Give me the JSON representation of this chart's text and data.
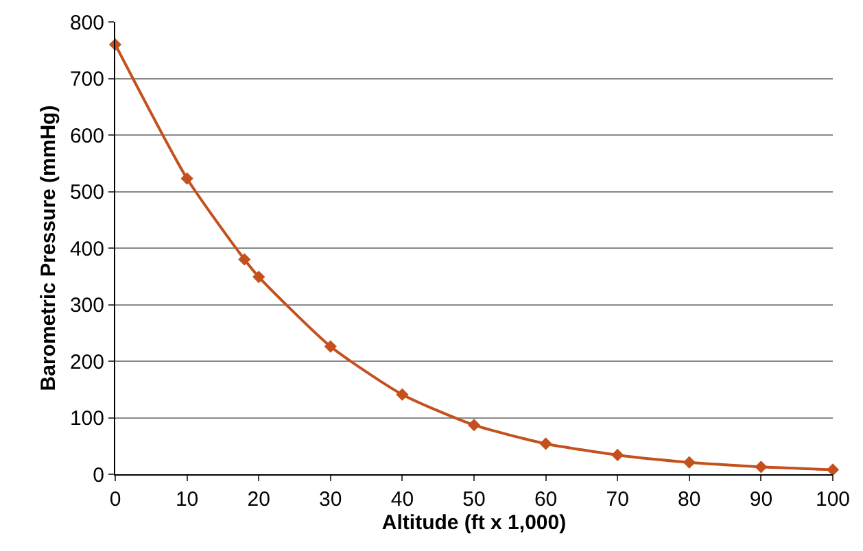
{
  "chart_data": {
    "type": "line",
    "xlabel": "Altitude (ft x 1,000)",
    "ylabel": "Barometric Pressure (mmHg)",
    "x": [
      0,
      10,
      18,
      20,
      30,
      40,
      50,
      60,
      70,
      80,
      90,
      100
    ],
    "series": [
      {
        "color": "#c4501e",
        "values": [
          760,
          523,
          380,
          349,
          226,
          141,
          87,
          54,
          34,
          21,
          13,
          8
        ]
      }
    ],
    "xlim": [
      0,
      100
    ],
    "xticks": [
      0,
      10,
      20,
      30,
      40,
      50,
      60,
      70,
      80,
      90,
      100
    ],
    "ylim": [
      0,
      800
    ],
    "yticks": [
      0,
      100,
      200,
      300,
      400,
      500,
      600,
      700,
      800
    ],
    "grid": "y",
    "marker": "diamond",
    "line_style": "solid"
  }
}
